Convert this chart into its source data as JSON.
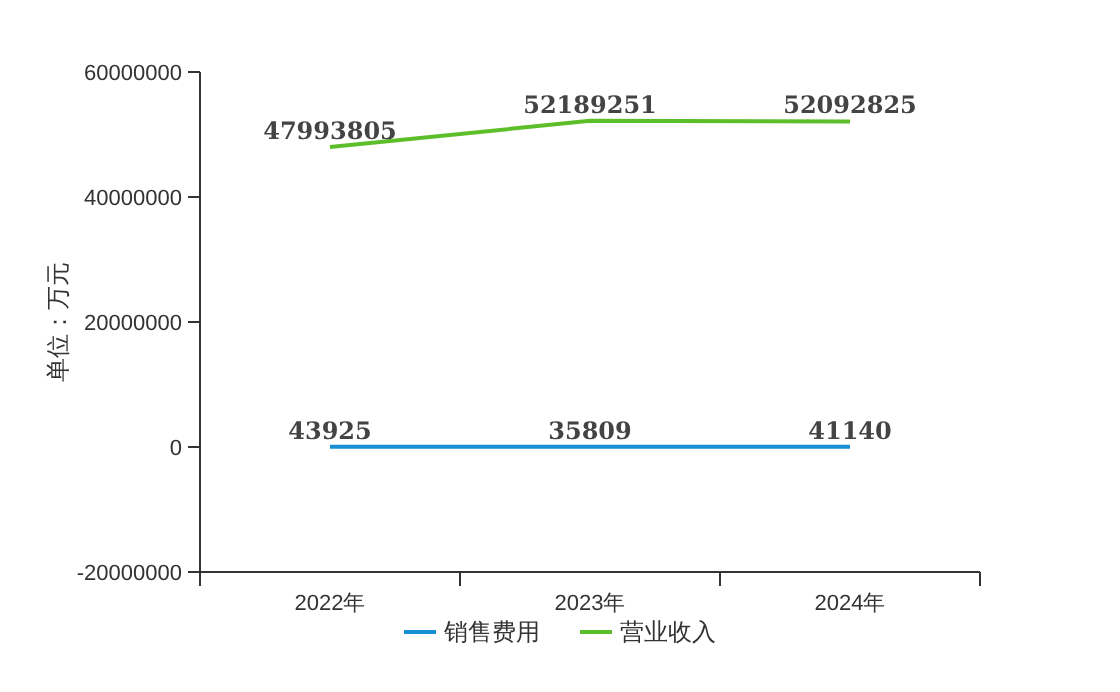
{
  "chart_data": {
    "type": "line",
    "ylabel": "单位：万元",
    "categories": [
      "2022年",
      "2023年",
      "2024年"
    ],
    "series": [
      {
        "name": "销售费用",
        "color": "#1a8fd6",
        "values": [
          43925,
          35809,
          41140
        ]
      },
      {
        "name": "营业收入",
        "color": "#5cbf2a",
        "values": [
          47993805,
          52189251,
          52092825
        ]
      }
    ],
    "ylim": [
      -20000000,
      60000000
    ],
    "yticks": [
      -20000000,
      0,
      20000000,
      40000000,
      60000000
    ],
    "data_labels": true,
    "legend": "bottom",
    "grid": false,
    "marker": "none",
    "line_style": "solid"
  }
}
